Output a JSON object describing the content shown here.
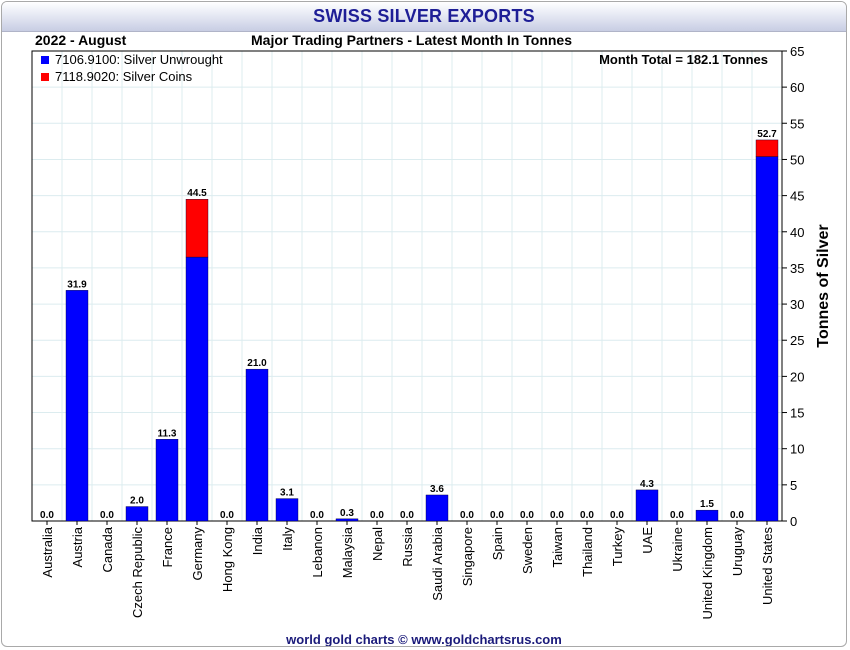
{
  "header": {
    "title": "SWISS SILVER EXPORTS",
    "period": "2022 - August",
    "subtitle": "Major Trading Partners - Latest Month In Tonnes"
  },
  "footer": {
    "credit": "world gold charts © www.goldchartsrus.com"
  },
  "colors": {
    "unwrought": "#0000ff",
    "coins": "#ff0000",
    "grid": "#dcecef",
    "title_text": "#1e1e96"
  },
  "chart_data": {
    "type": "bar",
    "stacked": true,
    "categories": [
      "Australia",
      "Austria",
      "Canada",
      "Czech Republic",
      "France",
      "Germany",
      "Hong Kong",
      "India",
      "Italy",
      "Lebanon",
      "Malaysia",
      "Nepal",
      "Russia",
      "Saudi Arabia",
      "Singapore",
      "Spain",
      "Sweden",
      "Taiwan",
      "Thailand",
      "Turkey",
      "UAE",
      "Ukraine",
      "United Kingdom",
      "Uruguay",
      "United States"
    ],
    "series": [
      {
        "name": "7106.9100: Silver Unwrought",
        "values": [
          0,
          31.9,
          0,
          2.0,
          11.3,
          36.5,
          0,
          21.0,
          3.1,
          0,
          0.3,
          0,
          0,
          3.6,
          0,
          0,
          0,
          0,
          0,
          0,
          4.3,
          0,
          1.5,
          0,
          50.4
        ]
      },
      {
        "name": "7118.9020: Silver Coins",
        "values": [
          0,
          0,
          0,
          0,
          0,
          8.0,
          0,
          0,
          0,
          0,
          0,
          0,
          0,
          0,
          0,
          0,
          0,
          0,
          0,
          0,
          0,
          0,
          0,
          0,
          2.3
        ]
      }
    ],
    "totals": [
      "0.0",
      "31.9",
      "0.0",
      "2.0",
      "11.3",
      "44.5",
      "0.0",
      "21.0",
      "3.1",
      "0.0",
      "0.3",
      "0.0",
      "0.0",
      "3.6",
      "0.0",
      "0.0",
      "0.0",
      "0.0",
      "0.0",
      "0.0",
      "4.3",
      "0.0",
      "1.5",
      "0.0",
      "52.7"
    ],
    "annotation": "Month Total = 182.1 Tonnes",
    "ylabel": "Tonnes of Silver",
    "ylim": [
      0,
      65
    ],
    "yticks": [
      0,
      5,
      10,
      15,
      20,
      25,
      30,
      35,
      40,
      45,
      50,
      55,
      60,
      65
    ],
    "y_axis_side": "right",
    "grid": true,
    "legend_position": "top-left"
  }
}
